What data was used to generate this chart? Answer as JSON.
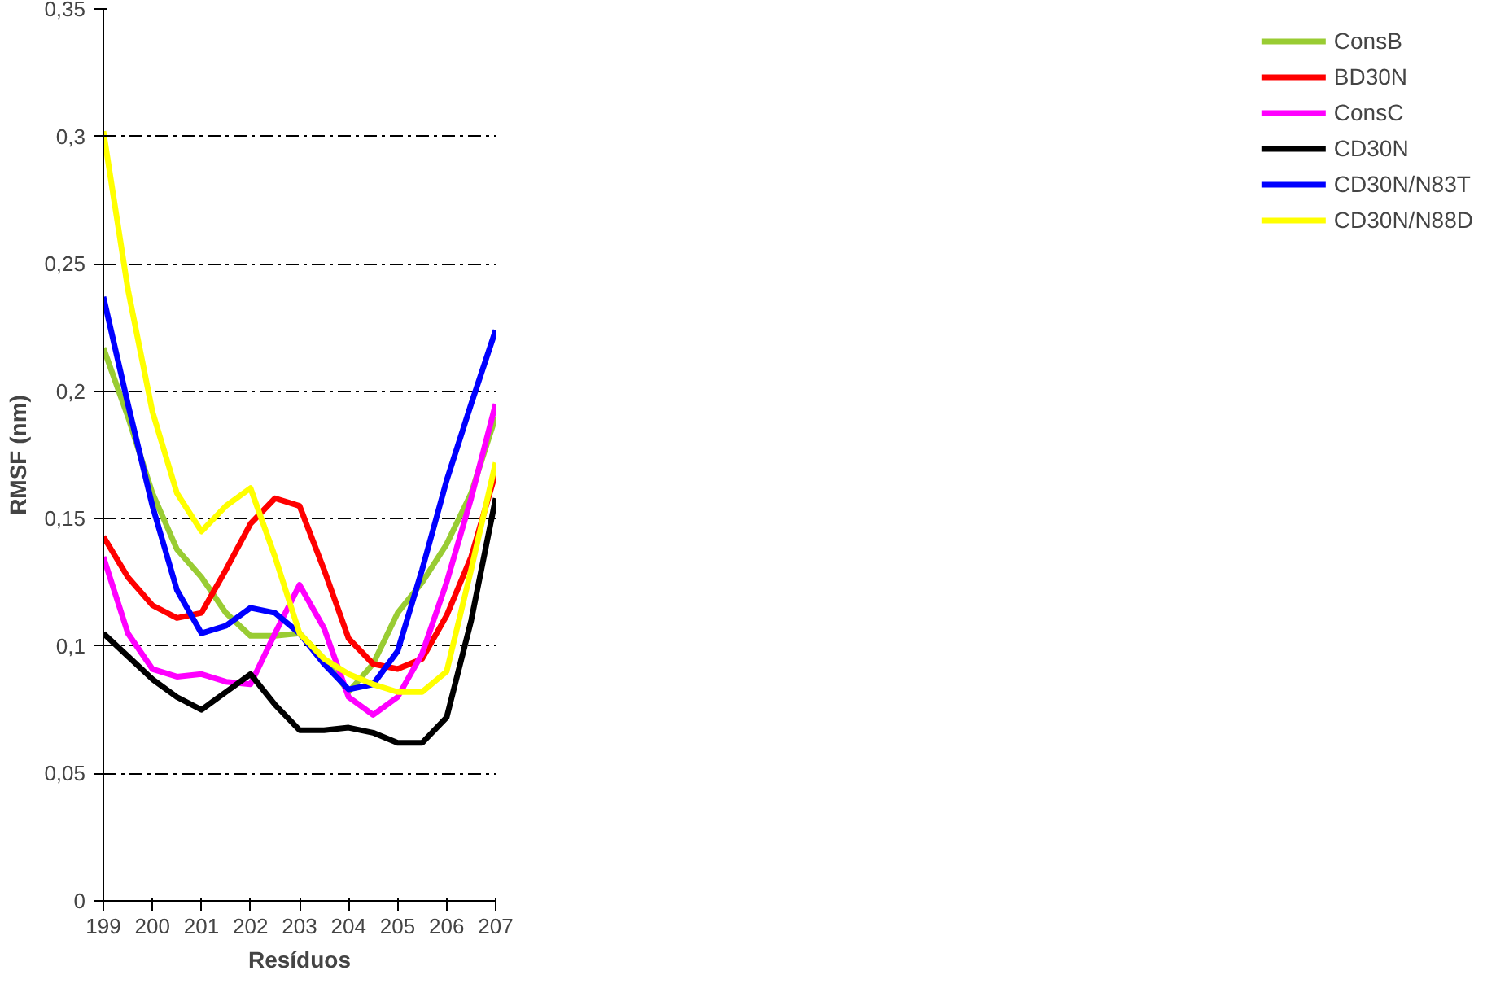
{
  "chart_data": {
    "type": "line",
    "xlabel": "Resíduos",
    "ylabel": "RMSF (nm)",
    "x": [
      199,
      199.5,
      200,
      200.5,
      201,
      201.5,
      202,
      202.5,
      203,
      203.5,
      204,
      204.5,
      205,
      205.5,
      206,
      206.5,
      207
    ],
    "xlim": [
      199,
      207
    ],
    "xticks": [
      199,
      200,
      201,
      202,
      203,
      204,
      205,
      206,
      207
    ],
    "ylim": [
      0,
      0.35
    ],
    "yticks": [
      0,
      {
        "value": 0.05,
        "label": "0,05"
      },
      {
        "value": 0.1,
        "label": "0,1"
      },
      {
        "value": 0.15,
        "label": "0,15"
      },
      {
        "value": 0.2,
        "label": "0,2"
      },
      {
        "value": 0.25,
        "label": "0,25"
      },
      {
        "value": 0.3,
        "label": "0,3"
      },
      {
        "value": 0.35,
        "label": "0,35"
      }
    ],
    "grid": "y",
    "legend": "right",
    "marker": "none",
    "line_style": "solid",
    "series": [
      {
        "name": "ConsB",
        "color": "#99cc33",
        "values": [
          0.217,
          0.19,
          0.16,
          0.138,
          0.127,
          0.113,
          0.104,
          0.104,
          0.105,
          0.095,
          0.082,
          0.093,
          0.113,
          0.125,
          0.14,
          0.16,
          0.19
        ]
      },
      {
        "name": "BD30N",
        "color": "#ff0000",
        "values": [
          0.143,
          0.127,
          0.116,
          0.111,
          0.113,
          0.13,
          0.148,
          0.158,
          0.155,
          0.13,
          0.103,
          0.093,
          0.091,
          0.095,
          0.112,
          0.135,
          0.168
        ]
      },
      {
        "name": "ConsC",
        "color": "#ff00ff",
        "values": [
          0.135,
          0.105,
          0.091,
          0.088,
          0.089,
          0.086,
          0.085,
          0.105,
          0.124,
          0.107,
          0.08,
          0.073,
          0.08,
          0.097,
          0.125,
          0.158,
          0.195
        ]
      },
      {
        "name": "CD30N",
        "color": "#000000",
        "values": [
          0.105,
          0.096,
          0.087,
          0.08,
          0.075,
          0.082,
          0.089,
          0.077,
          0.067,
          0.067,
          0.068,
          0.066,
          0.062,
          0.062,
          0.072,
          0.11,
          0.158
        ]
      },
      {
        "name": "CD30N/N83T",
        "color": "#0000ff",
        "values": [
          0.237,
          0.195,
          0.155,
          0.122,
          0.105,
          0.108,
          0.115,
          0.113,
          0.105,
          0.093,
          0.083,
          0.085,
          0.098,
          0.13,
          0.165,
          0.195,
          0.224
        ]
      },
      {
        "name": "CD30N/N88D",
        "color": "#ffff00",
        "values": [
          0.302,
          0.24,
          0.192,
          0.16,
          0.145,
          0.155,
          0.162,
          0.135,
          0.105,
          0.095,
          0.089,
          0.085,
          0.082,
          0.082,
          0.09,
          0.13,
          0.172
        ]
      }
    ]
  }
}
